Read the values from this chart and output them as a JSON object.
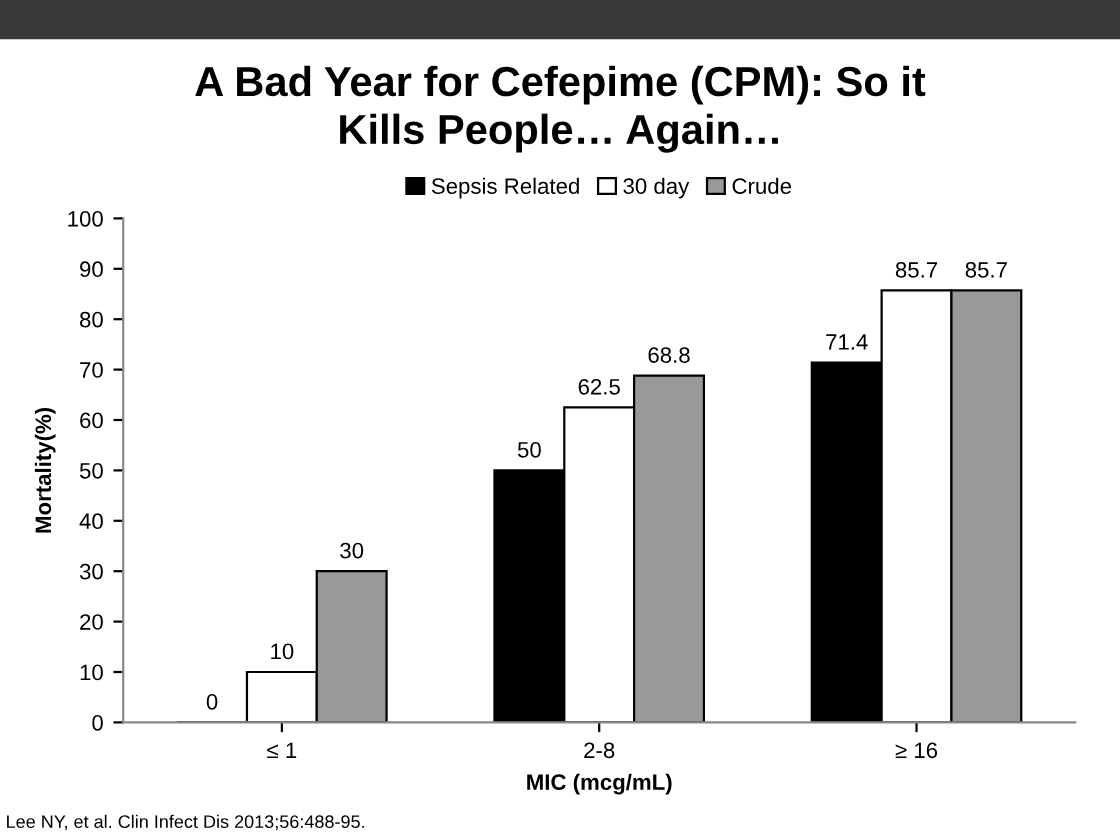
{
  "chart_data": {
    "type": "bar",
    "title": "A Bad Year for Cefepime (CPM): So it\nKills People… Again…",
    "categories": [
      "≤ 1",
      "2-8",
      "≥ 16"
    ],
    "series": [
      {
        "name": "Sepsis Related",
        "color": "#000000",
        "values": [
          0,
          50,
          71.4
        ]
      },
      {
        "name": "30 day",
        "color": "#ffffff",
        "values": [
          10,
          62.5,
          85.7
        ]
      },
      {
        "name": "Crude",
        "color": "#999999",
        "values": [
          30,
          68.8,
          85.7
        ]
      }
    ],
    "xlabel": "MIC (mcg/mL)",
    "ylabel": "Mortality(%)",
    "ylim": [
      0,
      100
    ],
    "yticks": [
      0,
      10,
      20,
      30,
      40,
      50,
      60,
      70,
      80,
      90,
      100
    ],
    "data_labels": true,
    "legend": "top",
    "grid": false,
    "annotations": [
      "Lee NY, et al. Clin Infect Dis 2013;56:488-95."
    ]
  }
}
